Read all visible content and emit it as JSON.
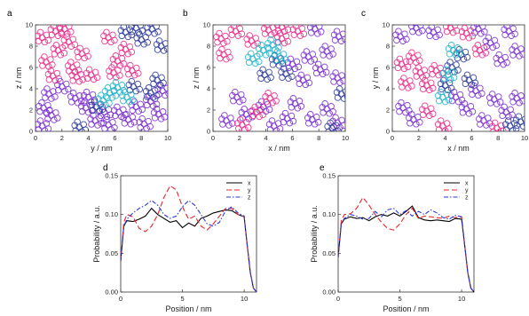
{
  "chart_data": [
    {
      "panel": "a",
      "type": "scatter",
      "xlabel": "y  / nm",
      "ylabel": "z / nm",
      "xlim": [
        0,
        10
      ],
      "ylim": [
        0,
        10
      ],
      "xticks": [
        "0",
        "2",
        "4",
        "6",
        "8",
        "10"
      ],
      "yticks": [
        "0",
        "2",
        "4",
        "6",
        "8",
        "10"
      ],
      "series": [
        {
          "color": "#7a2ed1",
          "points": [
            [
              0.5,
              0.5
            ],
            [
              1.2,
              1.5
            ],
            [
              1.0,
              3.5
            ],
            [
              2.0,
              4.2
            ],
            [
              3.0,
              3.1
            ],
            [
              3.8,
              2.2
            ],
            [
              4.5,
              1.0
            ],
            [
              5.5,
              0.6
            ],
            [
              6.3,
              1.8
            ],
            [
              7.0,
              1.1
            ],
            [
              8.2,
              0.7
            ],
            [
              9.3,
              1.6
            ],
            [
              8.7,
              2.8
            ],
            [
              9.6,
              3.8
            ],
            [
              7.6,
              2.3
            ],
            [
              5.2,
              1.8
            ],
            [
              4.0,
              3.2
            ],
            [
              0.6,
              2.2
            ]
          ]
        },
        {
          "color": "#ea2a8a",
          "points": [
            [
              0.5,
              8.8
            ],
            [
              1.5,
              9.4
            ],
            [
              0.8,
              6.5
            ],
            [
              1.7,
              7.6
            ],
            [
              2.5,
              8.4
            ],
            [
              1.3,
              5.2
            ],
            [
              2.8,
              6.0
            ],
            [
              3.5,
              7.3
            ],
            [
              6.2,
              6.6
            ],
            [
              6.8,
              7.7
            ],
            [
              5.9,
              5.5
            ],
            [
              7.3,
              5.7
            ],
            [
              5.5,
              8.8
            ],
            [
              2.2,
              9.6
            ],
            [
              3.1,
              5.1
            ],
            [
              4.2,
              5.3
            ]
          ]
        },
        {
          "color": "#2a3a9a",
          "points": [
            [
              6.8,
              9.3
            ],
            [
              8.0,
              8.6
            ],
            [
              8.8,
              9.6
            ],
            [
              9.5,
              8.0
            ],
            [
              7.6,
              9.7
            ],
            [
              9.2,
              4.8
            ],
            [
              8.7,
              3.6
            ],
            [
              7.4,
              4.2
            ],
            [
              4.6,
              2.3
            ],
            [
              3.3,
              0.4
            ]
          ]
        },
        {
          "color": "#22b2c8",
          "points": [
            [
              6.2,
              4.1
            ],
            [
              6.9,
              3.2
            ],
            [
              5.6,
              3.6
            ],
            [
              5.1,
              2.9
            ]
          ]
        }
      ]
    },
    {
      "panel": "b",
      "type": "scatter",
      "xlabel": "x  / nm",
      "ylabel": "z / nm",
      "xlim": [
        0,
        10
      ],
      "ylim": [
        0,
        10
      ],
      "xticks": [
        "0",
        "2",
        "4",
        "6",
        "8",
        "10"
      ],
      "yticks": [
        "0",
        "2",
        "4",
        "6",
        "8",
        "10"
      ],
      "series": [
        {
          "color": "#7a2ed1",
          "points": [
            [
              1.0,
              1.0
            ],
            [
              2.5,
              1.6
            ],
            [
              3.8,
              2.3
            ],
            [
              1.8,
              3.2
            ],
            [
              6.2,
              2.6
            ],
            [
              7.5,
              1.1
            ],
            [
              8.6,
              2.1
            ],
            [
              9.4,
              0.8
            ],
            [
              6.8,
              4.8
            ],
            [
              8.1,
              5.8
            ],
            [
              9.4,
              5.0
            ],
            [
              7.2,
              7.0
            ],
            [
              8.6,
              7.5
            ],
            [
              9.5,
              8.9
            ],
            [
              7.7,
              9.6
            ],
            [
              5.6,
              1.2
            ],
            [
              4.6,
              0.5
            ],
            [
              6.0,
              6.3
            ]
          ]
        },
        {
          "color": "#ea2a8a",
          "points": [
            [
              0.6,
              8.7
            ],
            [
              1.7,
              9.4
            ],
            [
              2.9,
              8.5
            ],
            [
              0.8,
              7.2
            ],
            [
              4.2,
              9.5
            ],
            [
              5.2,
              8.7
            ],
            [
              6.4,
              9.4
            ],
            [
              3.3,
              1.8
            ],
            [
              4.3,
              3.1
            ],
            [
              2.2,
              0.6
            ],
            [
              5.2,
              9.8
            ]
          ]
        },
        {
          "color": "#2a3a9a",
          "points": [
            [
              4.8,
              6.6
            ],
            [
              5.5,
              5.4
            ],
            [
              9.7,
              3.5
            ],
            [
              9.0,
              0.3
            ],
            [
              3.9,
              5.3
            ]
          ]
        },
        {
          "color": "#22b2c8",
          "points": [
            [
              3.8,
              7.6
            ],
            [
              4.5,
              8.1
            ],
            [
              3.0,
              6.8
            ],
            [
              5.0,
              7.0
            ]
          ]
        }
      ]
    },
    {
      "panel": "c",
      "type": "scatter",
      "xlabel": "x  / nm",
      "ylabel": "y / nm",
      "xlim": [
        0,
        10
      ],
      "ylim": [
        0,
        10
      ],
      "xticks": [
        "0",
        "2",
        "4",
        "6",
        "8",
        "10"
      ],
      "yticks": [
        "0",
        "2",
        "4",
        "6",
        "8",
        "10"
      ],
      "series": [
        {
          "color": "#7a2ed1",
          "points": [
            [
              0.8,
              2.2
            ],
            [
              1.6,
              1.1
            ],
            [
              4.8,
              3.2
            ],
            [
              5.6,
              2.1
            ],
            [
              6.9,
              1.0
            ],
            [
              8.6,
              1.8
            ],
            [
              9.4,
              3.1
            ],
            [
              6.3,
              3.8
            ],
            [
              7.7,
              3.0
            ],
            [
              8.2,
              6.7
            ],
            [
              9.4,
              7.5
            ],
            [
              8.8,
              9.4
            ],
            [
              7.4,
              8.3
            ],
            [
              6.5,
              9.6
            ],
            [
              0.6,
              8.9
            ],
            [
              1.8,
              9.7
            ],
            [
              3.1,
              9.3
            ]
          ]
        },
        {
          "color": "#ea2a8a",
          "points": [
            [
              1.0,
              4.5
            ],
            [
              2.1,
              5.5
            ],
            [
              0.7,
              6.3
            ],
            [
              2.6,
              4.3
            ],
            [
              1.6,
              6.9
            ],
            [
              3.3,
              5.7
            ],
            [
              2.6,
              1.9
            ],
            [
              3.8,
              0.5
            ],
            [
              7.9,
              0.3
            ],
            [
              4.4,
              9.7
            ],
            [
              5.6,
              9.2
            ],
            [
              6.6,
              7.6
            ]
          ]
        },
        {
          "color": "#2a3a9a",
          "points": [
            [
              4.5,
              6.0
            ],
            [
              5.2,
              7.2
            ],
            [
              5.8,
              4.8
            ],
            [
              4.0,
              4.3
            ],
            [
              8.9,
              0.5
            ],
            [
              9.7,
              0.9
            ]
          ]
        },
        {
          "color": "#22b2c8",
          "points": [
            [
              4.2,
              5.3
            ],
            [
              3.8,
              3.2
            ],
            [
              4.6,
              7.6
            ]
          ]
        }
      ]
    },
    {
      "panel": "d",
      "type": "line",
      "xlabel": "Position / nm",
      "ylabel": "Probability / a.u.",
      "xlim": [
        0,
        11
      ],
      "ylim": [
        0,
        0.15
      ],
      "xticks": [
        "0",
        "5",
        "10"
      ],
      "yticks": [
        "0.00",
        "0.05",
        "0.10",
        "0.15"
      ],
      "legend_position": "top-right",
      "x": [
        0,
        0.25,
        0.5,
        1,
        1.5,
        2,
        2.5,
        3,
        3.5,
        4,
        4.5,
        5,
        5.5,
        6,
        6.5,
        7,
        7.5,
        8,
        8.5,
        9,
        9.5,
        10,
        10.25,
        10.5,
        10.75,
        11
      ],
      "series": [
        {
          "name": "x",
          "color": "#000000",
          "dash": "",
          "values": [
            0.04,
            0.085,
            0.092,
            0.091,
            0.094,
            0.098,
            0.108,
            0.1,
            0.095,
            0.09,
            0.092,
            0.083,
            0.089,
            0.085,
            0.095,
            0.098,
            0.102,
            0.104,
            0.106,
            0.105,
            0.1,
            0.097,
            0.06,
            0.025,
            0.005,
            0.0
          ]
        },
        {
          "name": "y",
          "color": "#e8262a",
          "dash": "6,3",
          "values": [
            0.04,
            0.09,
            0.1,
            0.097,
            0.082,
            0.078,
            0.085,
            0.1,
            0.122,
            0.137,
            0.132,
            0.11,
            0.094,
            0.098,
            0.085,
            0.08,
            0.088,
            0.098,
            0.108,
            0.108,
            0.1,
            0.097,
            0.06,
            0.025,
            0.005,
            0.0
          ]
        },
        {
          "name": "z",
          "color": "#2a3ad8",
          "dash": "5,2,1.5,2",
          "values": [
            0.04,
            0.085,
            0.094,
            0.102,
            0.108,
            0.112,
            0.118,
            0.112,
            0.1,
            0.095,
            0.098,
            0.11,
            0.118,
            0.112,
            0.1,
            0.088,
            0.085,
            0.09,
            0.105,
            0.11,
            0.102,
            0.098,
            0.06,
            0.025,
            0.005,
            0.0
          ]
        }
      ]
    },
    {
      "panel": "e",
      "type": "line",
      "xlabel": "Position / nm",
      "ylabel": "Probability / a.u.",
      "xlim": [
        0,
        11
      ],
      "ylim": [
        0,
        0.15
      ],
      "xticks": [
        "0",
        "5",
        "10"
      ],
      "yticks": [
        "0.00",
        "0.05",
        "0.10",
        "0.15"
      ],
      "legend_position": "top-right",
      "x": [
        0,
        0.25,
        0.5,
        1,
        1.5,
        2,
        2.5,
        3,
        3.5,
        4,
        4.5,
        5,
        5.5,
        6,
        6.5,
        7,
        7.5,
        8,
        8.5,
        9,
        9.5,
        10,
        10.25,
        10.5,
        10.75,
        11
      ],
      "series": [
        {
          "name": "x",
          "color": "#000000",
          "dash": "",
          "values": [
            0.045,
            0.088,
            0.094,
            0.097,
            0.095,
            0.096,
            0.092,
            0.097,
            0.1,
            0.098,
            0.102,
            0.098,
            0.104,
            0.111,
            0.096,
            0.093,
            0.092,
            0.093,
            0.092,
            0.091,
            0.095,
            0.094,
            0.06,
            0.025,
            0.005,
            0.0
          ]
        },
        {
          "name": "y",
          "color": "#e8262a",
          "dash": "6,3",
          "values": [
            0.045,
            0.092,
            0.1,
            0.101,
            0.108,
            0.122,
            0.112,
            0.1,
            0.09,
            0.082,
            0.08,
            0.088,
            0.1,
            0.108,
            0.095,
            0.098,
            0.097,
            0.096,
            0.095,
            0.098,
            0.096,
            0.097,
            0.06,
            0.025,
            0.005,
            0.0
          ]
        },
        {
          "name": "z",
          "color": "#2a3ad8",
          "dash": "5,2,1.5,2",
          "values": [
            0.045,
            0.088,
            0.095,
            0.1,
            0.098,
            0.094,
            0.095,
            0.104,
            0.097,
            0.106,
            0.108,
            0.1,
            0.105,
            0.098,
            0.104,
            0.1,
            0.106,
            0.102,
            0.096,
            0.094,
            0.099,
            0.097,
            0.06,
            0.025,
            0.005,
            0.0
          ]
        }
      ]
    }
  ]
}
